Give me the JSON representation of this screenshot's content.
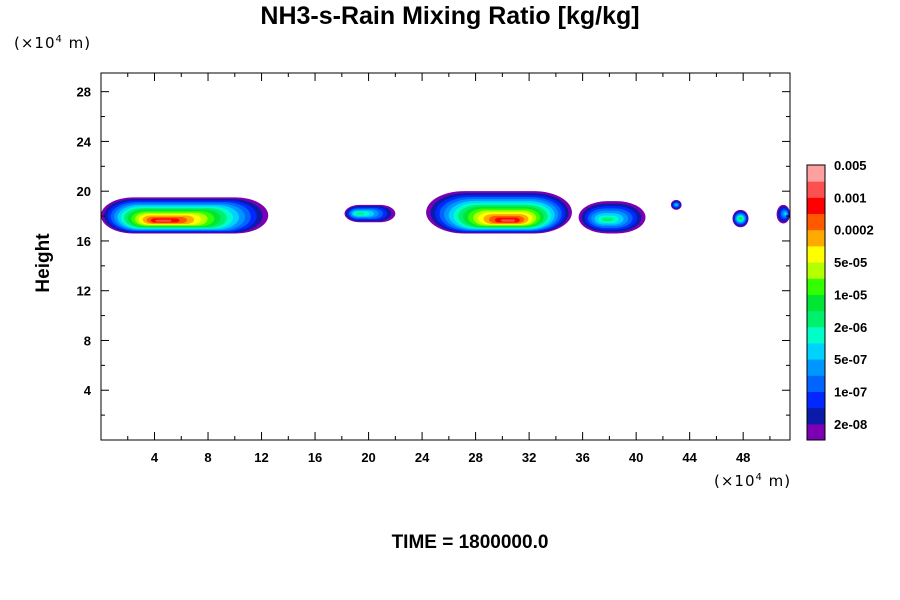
{
  "chart_data": {
    "type": "heatmap",
    "title": "NH3-s-Rain Mixing Ratio [kg/kg]",
    "ylabel": "Height",
    "y_unit_prefix": "(×10",
    "y_unit_exp": "4",
    "y_unit_suffix": " m)",
    "x_unit_prefix": "(×10",
    "x_unit_exp": "4",
    "x_unit_suffix": " m)",
    "xlim": [
      0,
      51.5
    ],
    "ylim": [
      0,
      29.5
    ],
    "xticks": [
      4,
      8,
      12,
      16,
      20,
      24,
      28,
      32,
      36,
      40,
      44,
      48
    ],
    "yticks": [
      4,
      8,
      12,
      16,
      20,
      24,
      28
    ],
    "colorbar": {
      "colors": [
        "#7b00b4",
        "#0b1aa8",
        "#0028ff",
        "#0064ff",
        "#0096ff",
        "#00d2ff",
        "#00ffc8",
        "#00f06e",
        "#00e632",
        "#32ff00",
        "#b4ff00",
        "#ffff00",
        "#ffaa00",
        "#ff5a00",
        "#ff0000",
        "#ff5050",
        "#ffa0a0"
      ],
      "labels": [
        "2e-08",
        "1e-07",
        "5e-07",
        "2e-06",
        "1e-05",
        "5e-05",
        "0.0002",
        "0.001",
        "0.005"
      ]
    },
    "clouds": [
      {
        "x0": 0.0,
        "x1": 12.5,
        "ybase": 16.6,
        "ytop": 19.5,
        "peak_level": 15,
        "core_x": 4.5,
        "core_y": 17.6
      },
      {
        "x0": 18.2,
        "x1": 22.0,
        "ybase": 17.5,
        "ytop": 18.9,
        "peak_level": 7,
        "core_x": 19.2,
        "core_y": 18.2
      },
      {
        "x0": 24.3,
        "x1": 35.2,
        "ybase": 16.6,
        "ytop": 20.0,
        "peak_level": 15,
        "core_x": 30.5,
        "core_y": 17.6
      },
      {
        "x0": 35.7,
        "x1": 40.7,
        "ybase": 16.6,
        "ytop": 19.2,
        "peak_level": 7,
        "core_x": 37.8,
        "core_y": 17.7
      },
      {
        "x0": 42.6,
        "x1": 43.4,
        "ybase": 18.5,
        "ytop": 19.3,
        "peak_level": 5,
        "core_x": 43.0,
        "core_y": 18.9
      },
      {
        "x0": 47.2,
        "x1": 48.4,
        "ybase": 17.1,
        "ytop": 18.5,
        "peak_level": 8,
        "core_x": 47.8,
        "core_y": 17.8
      },
      {
        "x0": 50.5,
        "x1": 51.5,
        "ybase": 17.4,
        "ytop": 18.9,
        "peak_level": 5,
        "core_x": 51.2,
        "core_y": 18.2
      }
    ]
  },
  "time_label": "TIME = 1800000.0"
}
